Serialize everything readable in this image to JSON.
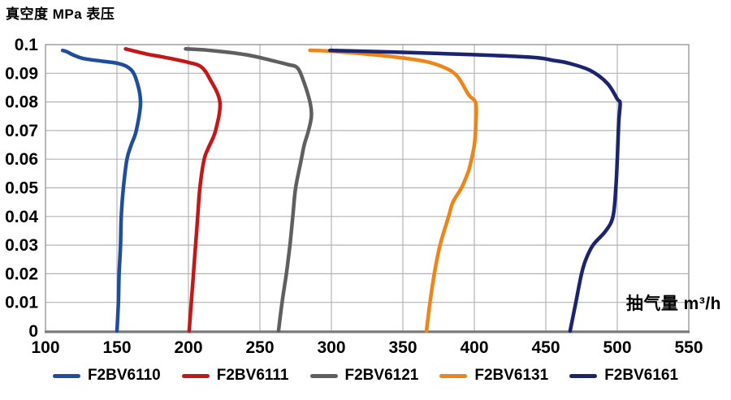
{
  "title": "真空度 MPa 表压",
  "x_unit_label": "抽气量 m³/h",
  "colors": {
    "background": "#ffffff",
    "grid": "#b3b3b3",
    "plot_border": "#a0a0a0",
    "axis_bottom": "#787878",
    "text": "#000000"
  },
  "chart_data": {
    "type": "line",
    "title": "真空度 MPa 表压",
    "xlabel": "抽气量 m³/h",
    "ylabel": "真空度 MPa 表压",
    "xlim": [
      100,
      550
    ],
    "ylim": [
      0,
      0.1
    ],
    "x_ticks": [
      100,
      150,
      200,
      250,
      300,
      350,
      400,
      450,
      500,
      550
    ],
    "y_ticks": [
      0,
      0.01,
      0.02,
      0.03,
      0.04,
      0.05,
      0.06,
      0.07,
      0.08,
      0.09,
      0.1
    ],
    "y_tick_labels": [
      "0",
      "0.01",
      "0.02",
      "0.03",
      "0.04",
      "0.05",
      "0.06",
      "0.07",
      "0.08",
      "0.09",
      "0.1"
    ],
    "grid": true,
    "legend_position": "bottom",
    "series": [
      {
        "name": "F2BV6110",
        "color": "#1F4E9E",
        "points": [
          [
            112,
            0.098
          ],
          [
            115,
            0.0975
          ],
          [
            119,
            0.0965
          ],
          [
            126,
            0.0952
          ],
          [
            140,
            0.0942
          ],
          [
            150,
            0.0935
          ],
          [
            158,
            0.092
          ],
          [
            163,
            0.0885
          ],
          [
            166.5,
            0.08
          ],
          [
            163.5,
            0.07
          ],
          [
            160,
            0.065
          ],
          [
            157,
            0.06
          ],
          [
            154.5,
            0.05
          ],
          [
            153,
            0.04
          ],
          [
            152.5,
            0.03
          ],
          [
            151.5,
            0.02
          ],
          [
            151,
            0.01
          ],
          [
            150,
            0
          ]
        ]
      },
      {
        "name": "F2BV6111",
        "color": "#C51718",
        "points": [
          [
            156,
            0.0985
          ],
          [
            170,
            0.0968
          ],
          [
            184,
            0.0955
          ],
          [
            200,
            0.0938
          ],
          [
            209,
            0.0922
          ],
          [
            215,
            0.088
          ],
          [
            222,
            0.08
          ],
          [
            219,
            0.07
          ],
          [
            214,
            0.064
          ],
          [
            211,
            0.06
          ],
          [
            208,
            0.05
          ],
          [
            206.5,
            0.04
          ],
          [
            205,
            0.03
          ],
          [
            203.5,
            0.02
          ],
          [
            202,
            0.01
          ],
          [
            200.5,
            0
          ]
        ]
      },
      {
        "name": "F2BV6121",
        "color": "#5F5F5F",
        "points": [
          [
            198,
            0.0985
          ],
          [
            215,
            0.098
          ],
          [
            240,
            0.0965
          ],
          [
            258,
            0.0945
          ],
          [
            270,
            0.093
          ],
          [
            276,
            0.092
          ],
          [
            280,
            0.088
          ],
          [
            285,
            0.08
          ],
          [
            286,
            0.075
          ],
          [
            284,
            0.07
          ],
          [
            281,
            0.065
          ],
          [
            279,
            0.06
          ],
          [
            275,
            0.05
          ],
          [
            273,
            0.04
          ],
          [
            271,
            0.03
          ],
          [
            268.5,
            0.02
          ],
          [
            265.5,
            0.01
          ],
          [
            263,
            0
          ]
        ]
      },
      {
        "name": "F2BV6131",
        "color": "#EF8519",
        "points": [
          [
            285,
            0.098
          ],
          [
            300,
            0.0977
          ],
          [
            335,
            0.0962
          ],
          [
            364,
            0.0943
          ],
          [
            379,
            0.092
          ],
          [
            388,
            0.089
          ],
          [
            396,
            0.0825
          ],
          [
            401,
            0.0795
          ],
          [
            401,
            0.072
          ],
          [
            400,
            0.065
          ],
          [
            398,
            0.06
          ],
          [
            396,
            0.056
          ],
          [
            391,
            0.05
          ],
          [
            385,
            0.045
          ],
          [
            382,
            0.04
          ],
          [
            376,
            0.03
          ],
          [
            372,
            0.02
          ],
          [
            369,
            0.01
          ],
          [
            366.5,
            0
          ]
        ]
      },
      {
        "name": "F2BV6161",
        "color": "#1B2470",
        "points": [
          [
            299,
            0.098
          ],
          [
            370,
            0.097
          ],
          [
            437,
            0.0957
          ],
          [
            455,
            0.0945
          ],
          [
            466,
            0.0935
          ],
          [
            481,
            0.091
          ],
          [
            493,
            0.0865
          ],
          [
            500,
            0.081
          ],
          [
            502,
            0.0795
          ],
          [
            501,
            0.073
          ],
          [
            500,
            0.06
          ],
          [
            499,
            0.05
          ],
          [
            497,
            0.04
          ],
          [
            492,
            0.035
          ],
          [
            483,
            0.03
          ],
          [
            478,
            0.025
          ],
          [
            475,
            0.02
          ],
          [
            471,
            0.01
          ],
          [
            467,
            0
          ]
        ]
      }
    ]
  }
}
